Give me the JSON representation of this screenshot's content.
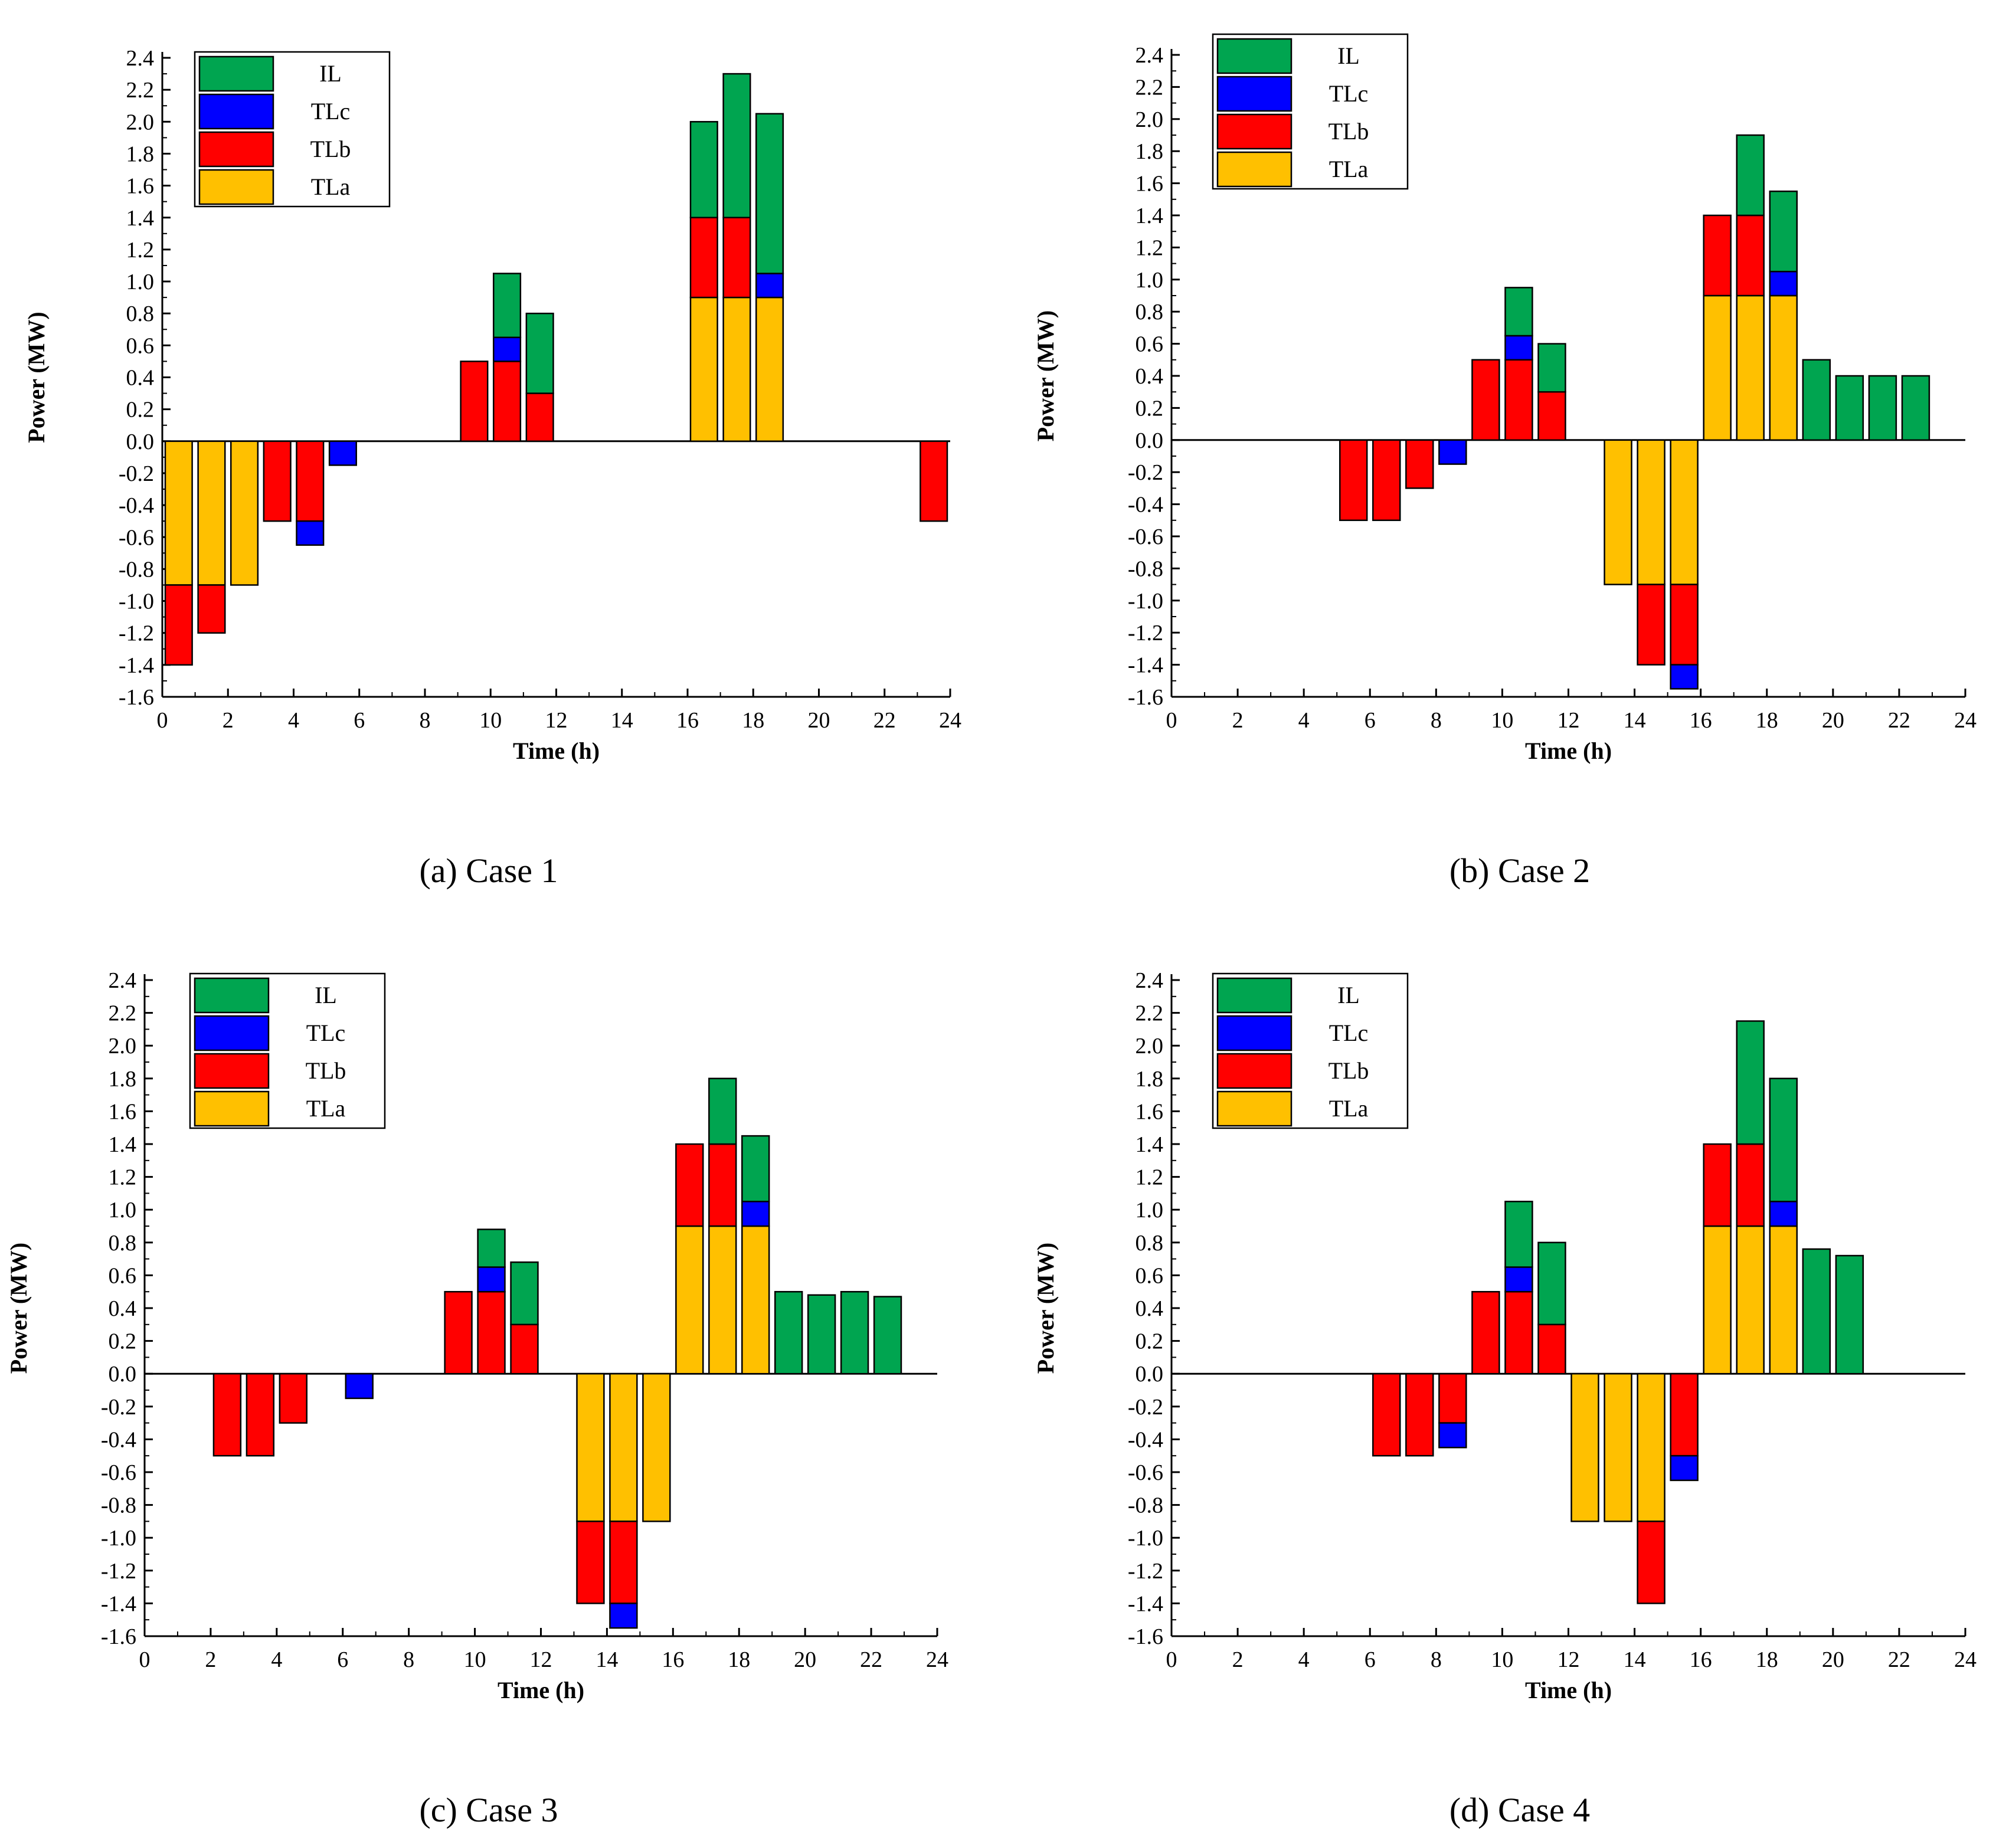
{
  "figure": {
    "colors": {
      "IL": "#00a550",
      "TLc": "#0000ff",
      "TLb": "#ff0000",
      "TLa": "#ffc000"
    },
    "legend": [
      "IL",
      "TLc",
      "TLb",
      "TLa"
    ]
  },
  "chart_data": [
    {
      "type": "bar",
      "stacked": true,
      "caption": "(a) Case 1",
      "xlabel": "Time (h)",
      "ylabel": "Power (MW)",
      "xlim": [
        0,
        24
      ],
      "ylim": [
        -1.6,
        2.4
      ],
      "xticks": [
        "0",
        "2",
        "4",
        "6",
        "8",
        "10",
        "12",
        "14",
        "16",
        "18",
        "20",
        "22",
        "24"
      ],
      "yticks": [
        "2.4",
        "2.2",
        "2.0",
        "1.8",
        "1.6",
        "1.4",
        "1.2",
        "1.0",
        "0.8",
        "0.6",
        "0.4",
        "0.2",
        "0.0",
        "-0.2",
        "-0.4",
        "-0.6",
        "-0.8",
        "-1.0",
        "-1.2",
        "-1.4",
        "-1.6"
      ],
      "legend": [
        "IL",
        "TLc",
        "TLb",
        "TLa"
      ],
      "legend_position": "top-left",
      "hours": [
        1,
        2,
        3,
        4,
        5,
        6,
        10,
        11,
        12,
        17,
        18,
        19,
        24
      ],
      "series": [
        {
          "name": "TLa",
          "values": [
            -0.9,
            -0.9,
            -0.9,
            0,
            0,
            0,
            0,
            0,
            0,
            0.9,
            0.9,
            0.9,
            0
          ]
        },
        {
          "name": "TLb",
          "values": [
            -0.5,
            -0.3,
            0,
            -0.5,
            -0.5,
            0,
            0.5,
            0.5,
            0.3,
            0.5,
            0.5,
            0,
            -0.5
          ]
        },
        {
          "name": "TLc",
          "values": [
            0,
            0,
            0,
            0,
            -0.15,
            -0.15,
            0,
            0.15,
            0,
            0,
            0,
            0.15,
            0
          ]
        },
        {
          "name": "IL",
          "values": [
            0,
            0,
            0,
            0,
            0,
            0,
            0,
            0.4,
            0.5,
            0.6,
            0.9,
            1.0,
            0
          ]
        }
      ]
    },
    {
      "type": "bar",
      "stacked": true,
      "caption": "(b) Case 2",
      "xlabel": "Time (h)",
      "ylabel": "Power (MW)",
      "xlim": [
        0,
        24
      ],
      "ylim": [
        -1.6,
        2.4
      ],
      "xticks": [
        "0",
        "2",
        "4",
        "6",
        "8",
        "10",
        "12",
        "14",
        "16",
        "18",
        "20",
        "22",
        "24"
      ],
      "yticks": [
        "2.4",
        "2.2",
        "2.0",
        "1.8",
        "1.6",
        "1.4",
        "1.2",
        "1.0",
        "0.8",
        "0.6",
        "0.4",
        "0.2",
        "0.0",
        "-0.2",
        "-0.4",
        "-0.6",
        "-0.8",
        "-1.0",
        "-1.2",
        "-1.4",
        "-1.6"
      ],
      "legend": [
        "IL",
        "TLc",
        "TLb",
        "TLa"
      ],
      "legend_position": "top-left",
      "hours": [
        6,
        7,
        8,
        9,
        10,
        11,
        12,
        14,
        15,
        16,
        17,
        18,
        19,
        20,
        21,
        22,
        23
      ],
      "series": [
        {
          "name": "TLa",
          "values": [
            0,
            0,
            0,
            0,
            0,
            0,
            0,
            -0.9,
            -0.9,
            -0.9,
            0.9,
            0.9,
            0.9,
            0,
            0,
            0,
            0
          ]
        },
        {
          "name": "TLb",
          "values": [
            -0.5,
            -0.5,
            -0.3,
            0,
            0.5,
            0.5,
            0.3,
            0,
            -0.5,
            -0.5,
            0.5,
            0.5,
            0,
            0,
            0,
            0,
            0
          ]
        },
        {
          "name": "TLc",
          "values": [
            0,
            0,
            0,
            -0.15,
            0,
            0.15,
            0,
            0,
            0,
            -0.15,
            0,
            0,
            0.15,
            0,
            0,
            0,
            0
          ]
        },
        {
          "name": "IL",
          "values": [
            0,
            0,
            0,
            0,
            0,
            0.3,
            0.3,
            0,
            0,
            0,
            0,
            0.5,
            0.5,
            0.5,
            0.4,
            0.4,
            0.4
          ]
        }
      ]
    },
    {
      "type": "bar",
      "stacked": true,
      "caption": "(c) Case 3",
      "xlabel": "Time (h)",
      "ylabel": "Power (MW)",
      "xlim": [
        0,
        24
      ],
      "ylim": [
        -1.6,
        2.4
      ],
      "xticks": [
        "0",
        "2",
        "4",
        "6",
        "8",
        "10",
        "12",
        "14",
        "16",
        "18",
        "20",
        "22",
        "24"
      ],
      "yticks": [
        "2.4",
        "2.2",
        "2.0",
        "1.8",
        "1.6",
        "1.4",
        "1.2",
        "1.0",
        "0.8",
        "0.6",
        "0.4",
        "0.2",
        "0.0",
        "-0.2",
        "-0.4",
        "-0.6",
        "-0.8",
        "-1.0",
        "-1.2",
        "-1.4",
        "-1.6"
      ],
      "legend": [
        "IL",
        "TLc",
        "TLb",
        "TLa"
      ],
      "legend_position": "top-left",
      "hours": [
        3,
        4,
        5,
        7,
        10,
        11,
        12,
        14,
        15,
        16,
        17,
        18,
        19,
        20,
        21,
        22,
        23
      ],
      "series": [
        {
          "name": "TLa",
          "values": [
            0,
            0,
            0,
            0,
            0,
            0,
            0,
            -0.9,
            -0.9,
            -0.9,
            0.9,
            0.9,
            0.9,
            0,
            0,
            0,
            0
          ]
        },
        {
          "name": "TLb",
          "values": [
            -0.5,
            -0.5,
            -0.3,
            0,
            0.5,
            0.5,
            0.3,
            -0.5,
            -0.5,
            0,
            0.5,
            0.5,
            0,
            0,
            0,
            0,
            0
          ]
        },
        {
          "name": "TLc",
          "values": [
            0,
            0,
            0,
            -0.15,
            0,
            0.15,
            0,
            0,
            -0.15,
            0,
            0,
            0,
            0.15,
            0,
            0,
            0,
            0
          ]
        },
        {
          "name": "IL",
          "values": [
            0,
            0,
            0,
            0,
            0,
            0.23,
            0.38,
            0,
            0,
            0,
            0,
            0.4,
            0.4,
            0.5,
            0.48,
            0.5,
            0.47
          ]
        }
      ]
    },
    {
      "type": "bar",
      "stacked": true,
      "caption": "(d) Case 4",
      "xlabel": "Time (h)",
      "ylabel": "Power (MW)",
      "xlim": [
        0,
        24
      ],
      "ylim": [
        -1.6,
        2.4
      ],
      "xticks": [
        "0",
        "2",
        "4",
        "6",
        "8",
        "10",
        "12",
        "14",
        "16",
        "18",
        "20",
        "22",
        "24"
      ],
      "yticks": [
        "2.4",
        "2.2",
        "2.0",
        "1.8",
        "1.6",
        "1.4",
        "1.2",
        "1.0",
        "0.8",
        "0.6",
        "0.4",
        "0.2",
        "0.0",
        "-0.2",
        "-0.4",
        "-0.6",
        "-0.8",
        "-1.0",
        "-1.2",
        "-1.4",
        "-1.6"
      ],
      "legend": [
        "IL",
        "TLc",
        "TLb",
        "TLa"
      ],
      "legend_position": "top-left",
      "hours": [
        7,
        8,
        9,
        10,
        11,
        12,
        13,
        14,
        15,
        16,
        17,
        18,
        19,
        20,
        21
      ],
      "series": [
        {
          "name": "TLa",
          "values": [
            0,
            0,
            0,
            0,
            0,
            0,
            -0.9,
            -0.9,
            -0.9,
            0,
            0.9,
            0.9,
            0.9,
            0,
            0
          ]
        },
        {
          "name": "TLb",
          "values": [
            -0.5,
            -0.5,
            -0.3,
            0.5,
            0.5,
            0.3,
            0,
            0,
            -0.5,
            -0.5,
            0.5,
            0.5,
            0,
            0,
            0
          ]
        },
        {
          "name": "TLc",
          "values": [
            0,
            0,
            -0.15,
            0,
            0.15,
            0,
            0,
            0,
            0,
            -0.15,
            0,
            0,
            0.15,
            0,
            0
          ]
        },
        {
          "name": "IL",
          "values": [
            0,
            0,
            0,
            0,
            0.4,
            0.5,
            0,
            0,
            0,
            0,
            0,
            0.75,
            0.75,
            0.76,
            0.72
          ]
        }
      ]
    }
  ]
}
